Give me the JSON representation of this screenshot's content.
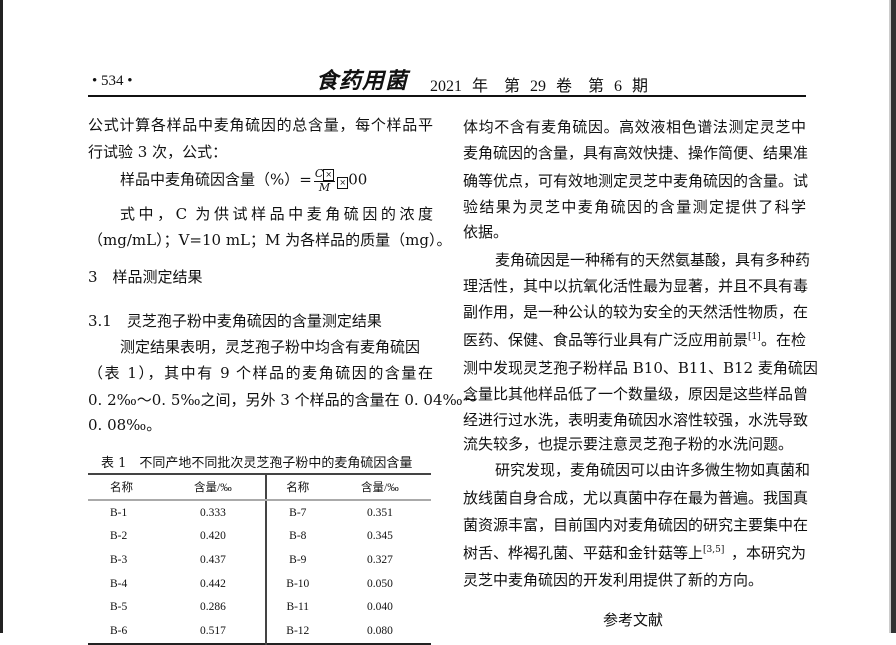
{
  "header": {
    "page_number": "• 534 •",
    "journal_logo": "食药用菌",
    "issue": "2021 年　第 29 卷　第 6 期"
  },
  "left": {
    "lines": [
      "公式计算各样品中麦角硫因的总含量，每个样品平",
      "行试验 3 次，公式："
    ],
    "formula": {
      "label": "样品中麦角硫因含量（%）=",
      "numerator": "C",
      "denominator": "M",
      "suffix": "00"
    },
    "explain": [
      "式中，C 为供试样品中麦角硫因的浓度",
      "（mg/mL）；V=10 mL；M 为各样品的质量（mg）。"
    ],
    "section": "3　样品测定结果",
    "subsection": "3.1　灵芝孢子粉中麦角硫因的含量测定结果",
    "para": [
      "测定结果表明，灵芝孢子粉中均含有麦角硫因",
      "（表 1），其中有 9 个样品的麦角硫因的含量在",
      "0. 2‰～0. 5‰之间，另外 3 个样品的含量在 0. 04‰～",
      "0. 08‰。"
    ]
  },
  "table": {
    "caption": "表 1　不同产地不同批次灵芝孢子粉中的麦角硫因含量",
    "headers": [
      "名称",
      "含量/‰",
      "名称",
      "含量/‰"
    ],
    "rows": [
      [
        "B-1",
        "0.333",
        "B-7",
        "0.351"
      ],
      [
        "B-2",
        "0.420",
        "B-8",
        "0.345"
      ],
      [
        "B-3",
        "0.437",
        "B-9",
        "0.327"
      ],
      [
        "B-4",
        "0.442",
        "B-10",
        "0.050"
      ],
      [
        "B-5",
        "0.286",
        "B-11",
        "0.040"
      ],
      [
        "B-6",
        "0.517",
        "B-12",
        "0.080"
      ]
    ]
  },
  "right": {
    "lines": [
      "体均不含有麦角硫因。高效液相色谱法测定灵芝中",
      "麦角硫因的含量，具有高效快捷、操作简便、结果准",
      "确等优点，可有效地测定灵芝中麦角硫因的含量。试",
      "验结果为灵芝中麦角硫因的含量测定提供了科学",
      "依据。",
      "麦角硫因是一种稀有的天然氨基酸，具有多种药",
      "理活性，其中以抗氧化活性最为显著，并且不具有毒",
      "副作用，是一种公认的较为安全的天然活性物质，在",
      "医药、保健、食品等行业具有广泛应用前景",
      "。在检",
      "测中发现灵芝孢子粉样品 B10、B11、B12 麦角硫因",
      "含量比其他样品低了一个数量级，原因是这些样品曾",
      "经进行过水洗，表明麦角硫因水溶性较强，水洗导致",
      "流失较多，也提示要注意灵芝孢子粉的水洗问题。",
      "研究发现，麦角硫因可以由许多微生物如真菌和",
      "放线菌自身合成，尤以真菌中存在最为普遍。我国真",
      "菌资源丰富，目前国内对麦角硫因的研究主要集中在",
      "树舌、桦褐孔菌、平菇和金针菇等上",
      "，本研究为",
      "灵芝中麦角硫因的开发利用提供了新的方向。"
    ],
    "cite1": "[1]",
    "cite2": "[3,5]",
    "references_title": "参考文献"
  }
}
